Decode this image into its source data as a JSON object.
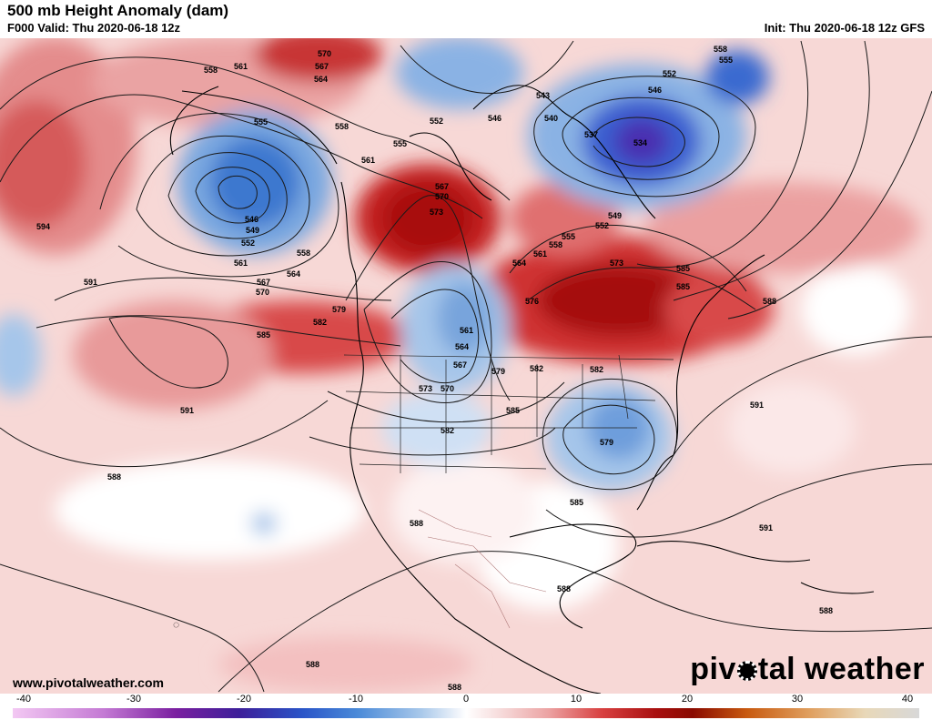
{
  "header": {
    "title": "500 mb Height Anomaly (dam)",
    "valid": "F000 Valid: Thu 2020-06-18 12z",
    "init": "Init: Thu 2020-06-18 12z GFS"
  },
  "footer": {
    "url": "www.pivotalweather.com",
    "logo_left": "piv",
    "logo_right": "tal weather"
  },
  "colorbar": {
    "ticks": [
      "-40",
      "-30",
      "-20",
      "-10",
      "0",
      "10",
      "20",
      "30",
      "40"
    ],
    "colors": {
      "-40": "#f3c8f3",
      "-32": "#c47ad4",
      "-25": "#7a1fa0",
      "-20": "#3d1f9a",
      "-15": "#2a55c8",
      "-10": "#4a8ad8",
      "-5": "#a8c8ea",
      "-1": "#eef3fa",
      "0": "#ffffff",
      "3": "#f6d9d9",
      "7": "#eca4a4",
      "12": "#d84040",
      "17": "#a80f0f",
      "20": "#8a0a00",
      "25": "#c85a10",
      "30": "#e0a060",
      "35": "#e8d8b8",
      "40": "#d8d8d8"
    }
  },
  "contour_labels": [
    "570",
    "567",
    "564",
    "558",
    "561",
    "555",
    "552",
    "546",
    "549",
    "594",
    "591",
    "585",
    "582",
    "579",
    "576",
    "573",
    "588",
    "543",
    "540",
    "537",
    "534"
  ],
  "legend_colors": {
    "positive_anomaly": "#c8282a",
    "negative_anomaly": "#2a55c8",
    "land_outline": "#000000",
    "contour": "#1a1a1a"
  }
}
